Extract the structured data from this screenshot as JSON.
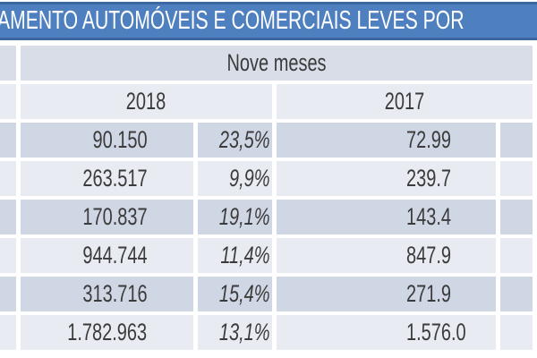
{
  "title": {
    "text": "AMENTO AUTOMÓVEIS E COMERCIAIS LEVES POR"
  },
  "table": {
    "period_header": "Nove meses",
    "year_left": "2018",
    "year_right": "2017",
    "rows": [
      {
        "value_2018": "90.150",
        "pct_change": "23,5%",
        "value_prev": "72.99"
      },
      {
        "value_2018": "263.517",
        "pct_change": "9,9%",
        "value_prev": "239.7"
      },
      {
        "value_2018": "170.837",
        "pct_change": "19,1%",
        "value_prev": "143.4"
      },
      {
        "value_2018": "944.744",
        "pct_change": "11,4%",
        "value_prev": "847.9"
      },
      {
        "value_2018": "313.716",
        "pct_change": "15,4%",
        "value_prev": "271.9"
      },
      {
        "value_2018": "1.782.963",
        "pct_change": "13,1%",
        "value_prev": "1.576.0"
      }
    ]
  },
  "colors": {
    "banner": "#4e7fbe",
    "banner_border": "#3c67a1",
    "band_header": "#d8dde8",
    "band_light": "#e9ebf2",
    "band_dark": "#cfd6e4",
    "text": "#3b3b3b",
    "title_text": "#ffffff",
    "page_bg": "#ffffff"
  }
}
